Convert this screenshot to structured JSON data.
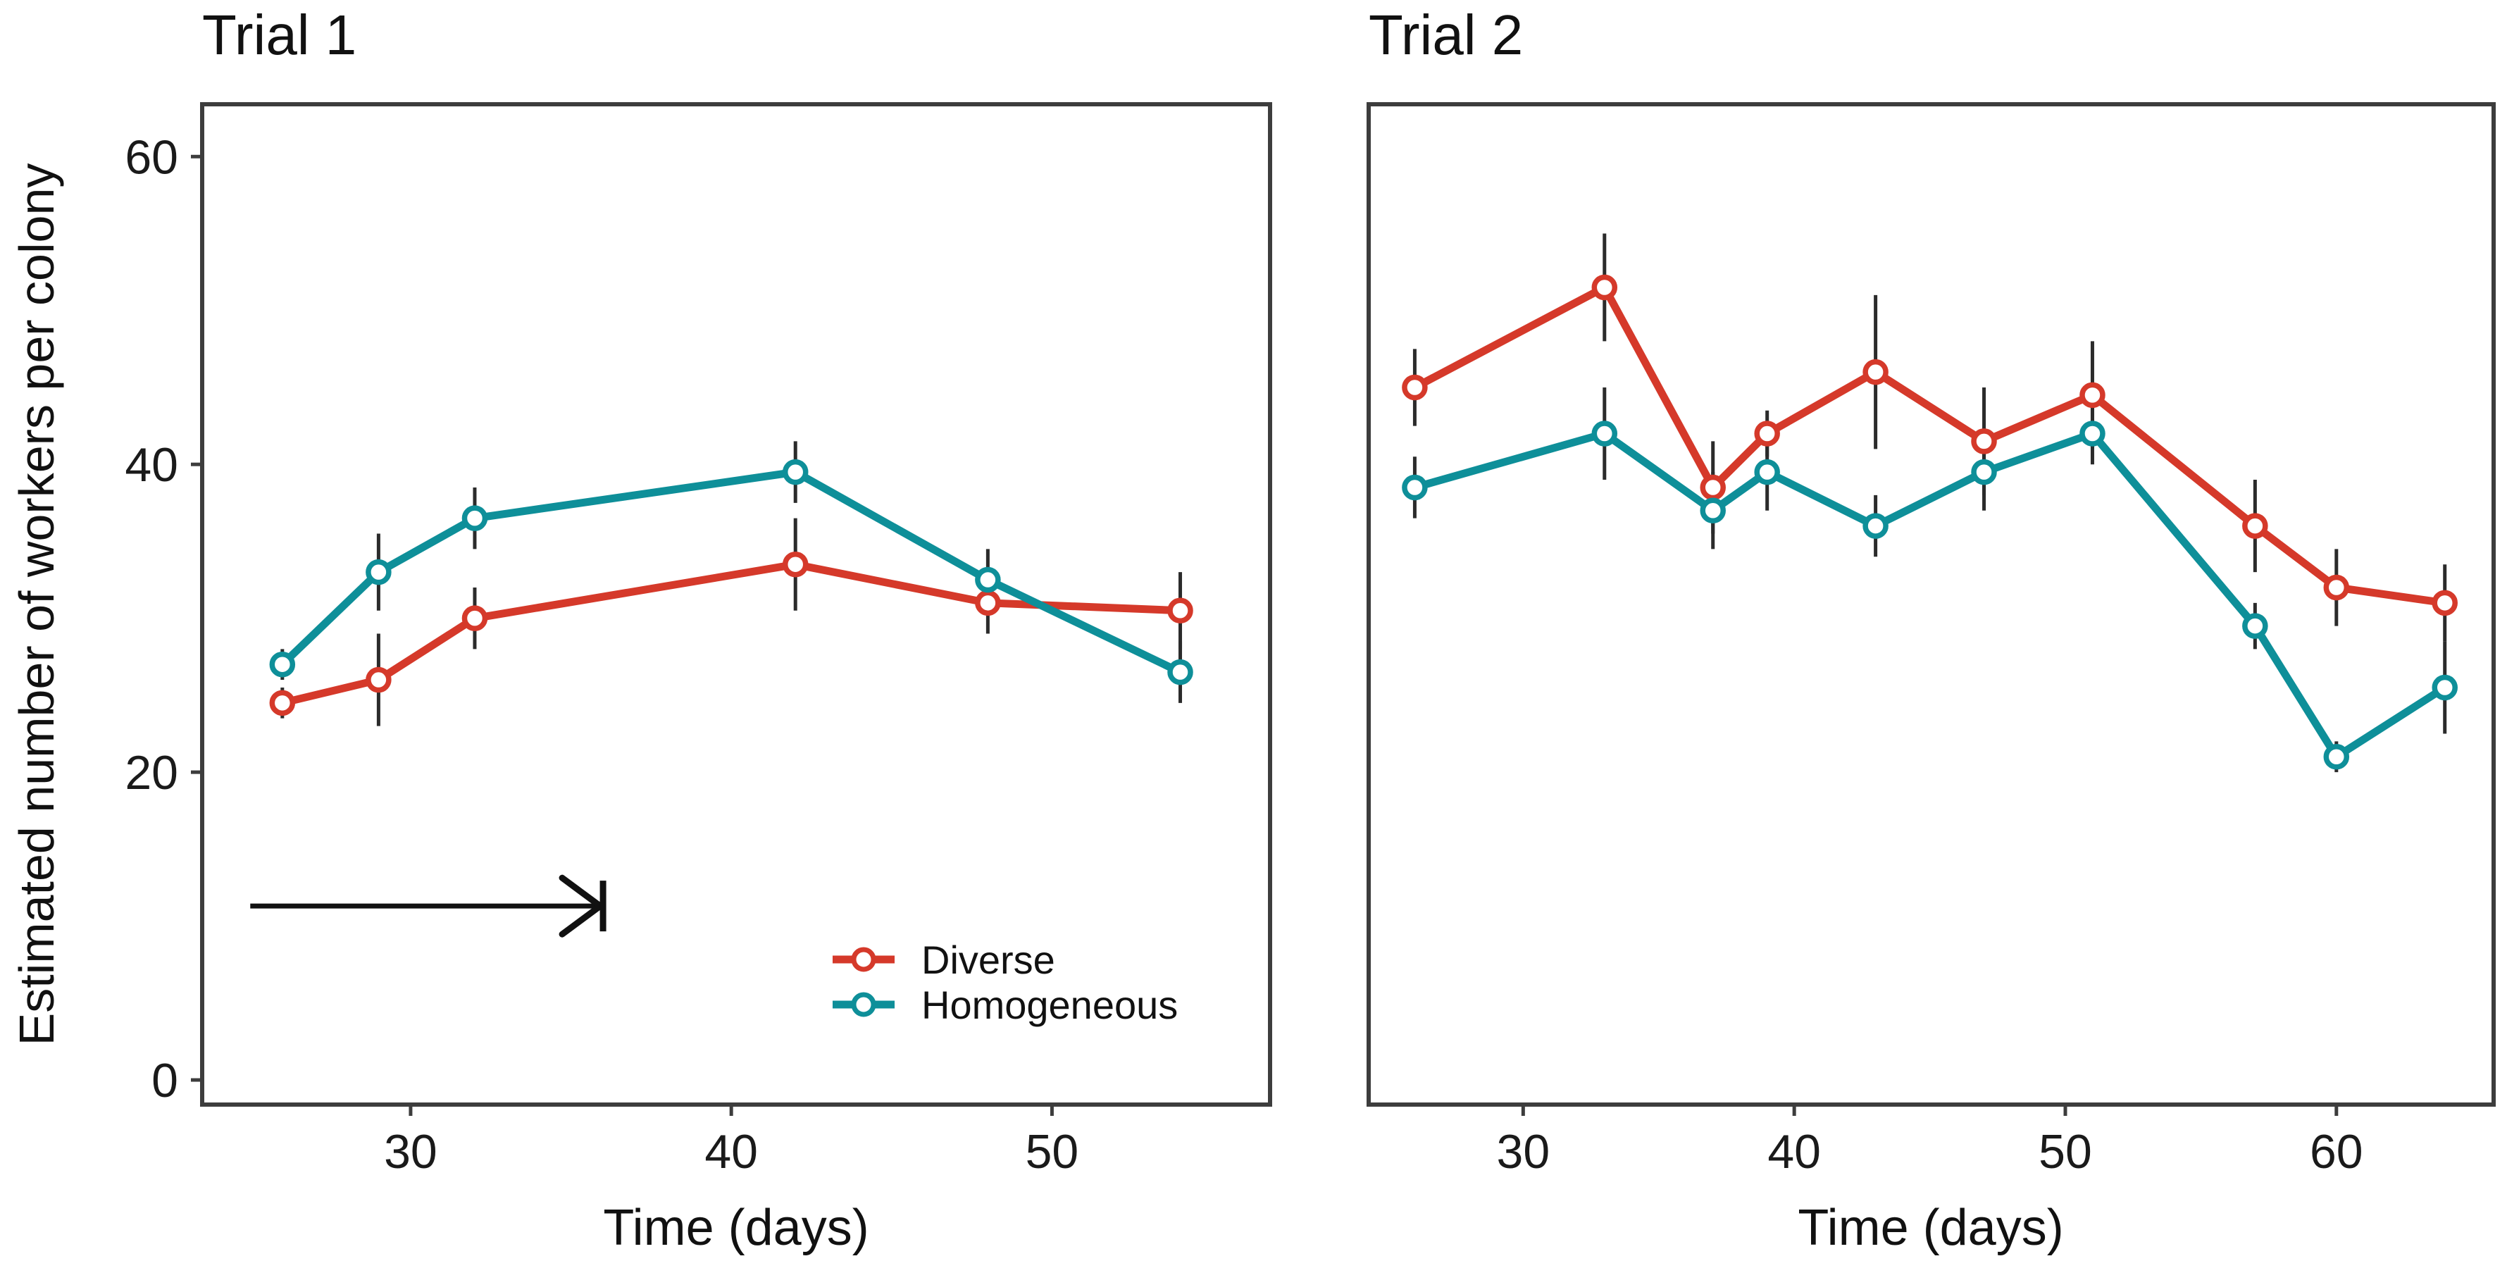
{
  "figure": {
    "background": "#ffffff",
    "text_color": "#1a1a1a",
    "axis_color": "#3d3d3d",
    "error_bar_color": "#2b2b2b",
    "annotation_color": "#111111"
  },
  "ylabel": "Estimated number of workers per colony",
  "chart_data": [
    {
      "type": "line",
      "title": "Trial 1",
      "xlabel": "Time (days)",
      "ylabel": "Estimated number of workers per colony",
      "xlim": [
        23.5,
        56.8
      ],
      "ylim": [
        -1.6,
        63.4
      ],
      "xticks": [
        30,
        40,
        50
      ],
      "yticks": [
        0,
        20,
        40,
        60
      ],
      "grid": false,
      "legend_position": "inside bottom-right",
      "x": [
        26,
        29,
        32,
        42,
        48,
        54
      ],
      "series": [
        {
          "name": "Diverse",
          "color": "#D5392A",
          "values": [
            24.5,
            26,
            30,
            33.5,
            31,
            30.5
          ],
          "errors": [
            1,
            3,
            2,
            3,
            2,
            2.5
          ]
        },
        {
          "name": "Homogeneous",
          "color": "#0E8F99",
          "values": [
            27,
            33,
            36.5,
            39.5,
            32.5,
            26.5
          ],
          "errors": [
            1,
            2.5,
            2,
            2,
            2,
            2
          ]
        }
      ],
      "annotations": [
        {
          "type": "arrow-with-end-bar",
          "x_start": 25,
          "x_end": 36,
          "y": 11.3
        }
      ]
    },
    {
      "type": "line",
      "title": "Trial 2",
      "xlabel": "Time (days)",
      "ylabel": "",
      "xlim": [
        24.3,
        65.8
      ],
      "ylim": [
        -1.6,
        63.4
      ],
      "xticks": [
        30,
        40,
        50,
        60
      ],
      "yticks": [],
      "grid": false,
      "x": [
        26,
        33,
        37,
        39,
        43,
        47,
        51,
        57,
        60,
        64
      ],
      "series": [
        {
          "name": "Diverse",
          "color": "#D5392A",
          "values": [
            45,
            51.5,
            38.5,
            42,
            46,
            41.5,
            44.5,
            36,
            32,
            31
          ],
          "errors": [
            2.5,
            3.5,
            3,
            1.5,
            5,
            3.5,
            3.5,
            3,
            2.5,
            2.5
          ]
        },
        {
          "name": "Homogeneous",
          "color": "#0E8F99",
          "values": [
            38.5,
            42,
            37,
            39.5,
            36,
            39.5,
            42,
            29.5,
            21,
            25.5
          ],
          "errors": [
            2,
            3,
            2.5,
            2.5,
            2,
            2.5,
            2,
            1.5,
            1,
            3
          ]
        }
      ],
      "annotations": []
    }
  ]
}
